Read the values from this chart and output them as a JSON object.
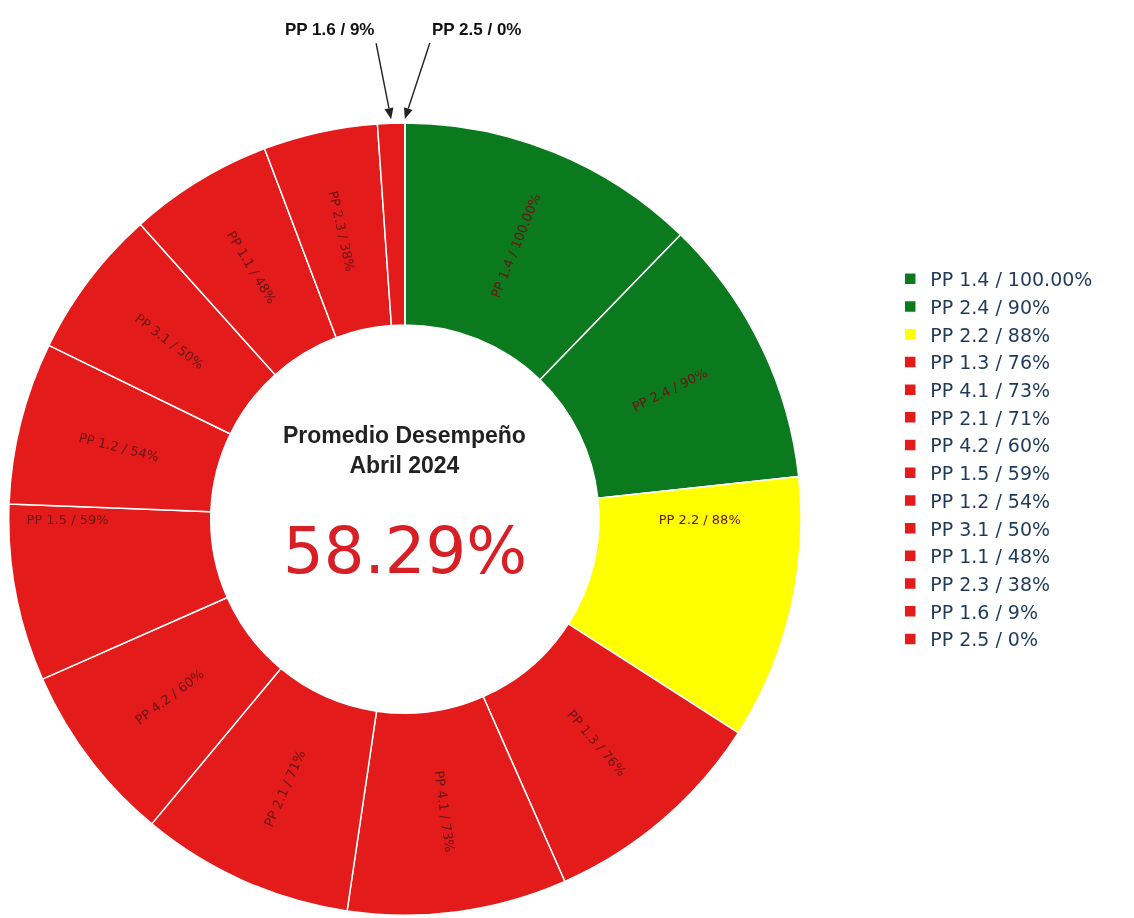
{
  "chart_data": {
    "type": "donut",
    "title": "Promedio Desempeño\nAbril 2024",
    "annotations": [
      "58.29%"
    ],
    "categories": [
      "PP 1.4 / 100.00%",
      "PP 2.4 / 90%",
      "PP 2.2 / 88%",
      "PP 1.3 / 76%",
      "PP 4.1 / 73%",
      "PP 2.1 / 71%",
      "PP 4.2 / 60%",
      "PP 1.5 / 59%",
      "PP 1.2 / 54%",
      "PP 3.1 / 50%",
      "PP 1.1 / 48%",
      "PP 2.3 / 38%",
      "PP 1.6 / 9%",
      "PP 2.5 / 0%"
    ],
    "values": [
      100,
      90,
      88,
      76,
      73,
      71,
      60,
      59,
      54,
      50,
      48,
      38,
      9,
      0
    ],
    "colors": [
      "#0b7a1e",
      "#0b7a1e",
      "#ffff00",
      "#e31b1b",
      "#e31b1b",
      "#e31b1b",
      "#e31b1b",
      "#e31b1b",
      "#e31b1b",
      "#e31b1b",
      "#e31b1b",
      "#e31b1b",
      "#e31b1b",
      "#e31b1b"
    ],
    "legend": "right"
  }
}
